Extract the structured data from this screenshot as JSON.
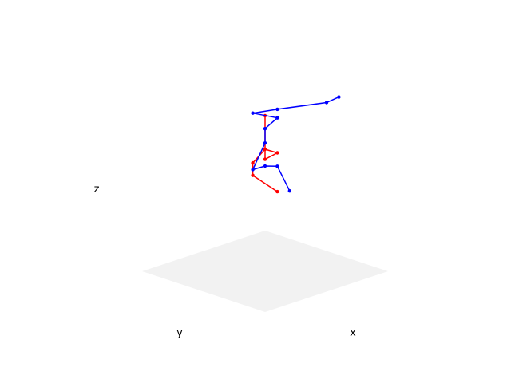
{
  "chart_data": {
    "type": "scatter",
    "projection": "3d",
    "title": "",
    "xlabel": "x",
    "ylabel": "y",
    "zlabel": "z",
    "grid": false,
    "legend": "none",
    "colors": {
      "floor": "#f2f2f2",
      "series_red": "#ff0000",
      "series_blue": "#0000ff"
    },
    "series": [
      {
        "color": "#ff0000",
        "points": [
          [
            0.1,
            0.0,
            0.45
          ],
          [
            0.0,
            0.1,
            0.62
          ],
          [
            0.0,
            0.1,
            0.75
          ],
          [
            0.0,
            0.0,
            0.85
          ],
          [
            0.2,
            0.1,
            0.94
          ],
          [
            0.3,
            0.3,
            1.0
          ],
          [
            0.0,
            0.0,
            1.2
          ]
        ]
      },
      {
        "color": "#0000ff",
        "points": [
          [
            0.2,
            0.0,
            0.5
          ],
          [
            0.2,
            0.1,
            0.8
          ],
          [
            0.1,
            0.1,
            0.76
          ],
          [
            0.2,
            0.3,
            0.85
          ],
          [
            0.1,
            0.1,
            1.0
          ],
          [
            0.1,
            0.1,
            1.15
          ],
          [
            0.1,
            0.0,
            1.22
          ],
          [
            0.0,
            0.1,
            1.27
          ],
          [
            0.1,
            0.0,
            1.31
          ],
          [
            0.5,
            0.0,
            1.55
          ],
          [
            0.6,
            0.0,
            1.65
          ]
        ]
      }
    ]
  }
}
